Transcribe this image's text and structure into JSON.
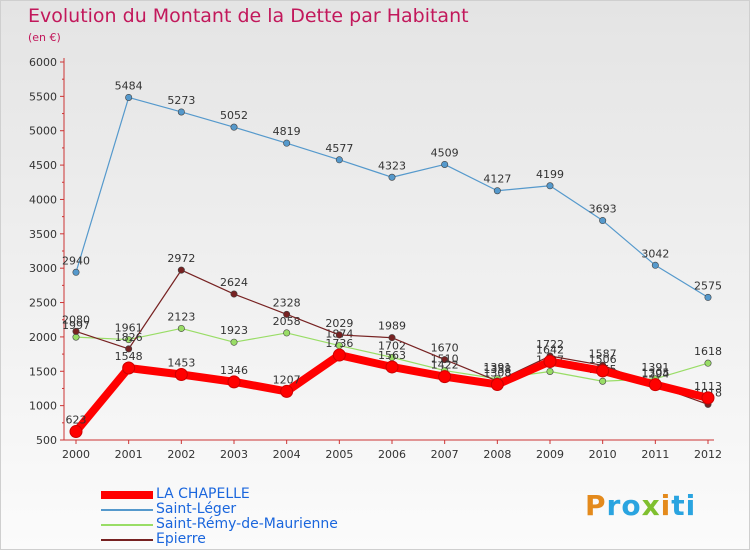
{
  "header": {
    "title": "Evolution du Montant de la Dette par Habitant",
    "subtitle": "(en €)"
  },
  "logo": {
    "text": "Proxiti"
  },
  "chart_data": {
    "type": "line",
    "x": [
      "2000",
      "2001",
      "2002",
      "2003",
      "2004",
      "2005",
      "2006",
      "2007",
      "2008",
      "2009",
      "2010",
      "2011",
      "2012"
    ],
    "ylim": [
      500,
      6000
    ],
    "yticks": [
      500,
      1000,
      1500,
      2000,
      2500,
      3000,
      3500,
      4000,
      4500,
      5000,
      5500,
      6000
    ],
    "grid": false,
    "legend_position": "bottom-left",
    "series": [
      {
        "name": "Saint-Rémy-de-Maurienne",
        "color": "#99dd66",
        "values": [
          1997,
          1961,
          2123,
          1923,
          2058,
          1874,
          1702,
          1510,
          1391,
          1497,
          1355,
          1391,
          1618
        ]
      },
      {
        "name": "Epierre",
        "color": "#772222",
        "values": [
          2080,
          1826,
          2972,
          2624,
          2328,
          2029,
          1989,
          1670,
          1358,
          1722,
          1587,
          1294,
          1018
        ]
      },
      {
        "name": "Saint-Léger",
        "color": "#5599cc",
        "values": [
          2940,
          5484,
          5273,
          5052,
          4819,
          4577,
          4323,
          4509,
          4127,
          4199,
          3693,
          3042,
          2575
        ]
      },
      {
        "name": "LA CHAPELLE",
        "color": "#ff0000",
        "values": [
          623,
          1548,
          1453,
          1346,
          1207,
          1736,
          1563,
          1422,
          1308,
          1642,
          1506,
          1305,
          1113
        ]
      }
    ],
    "legend": [
      "LA CHAPELLE",
      "Saint-Léger",
      "Saint-Rémy-de-Maurienne",
      "Epierre"
    ]
  }
}
